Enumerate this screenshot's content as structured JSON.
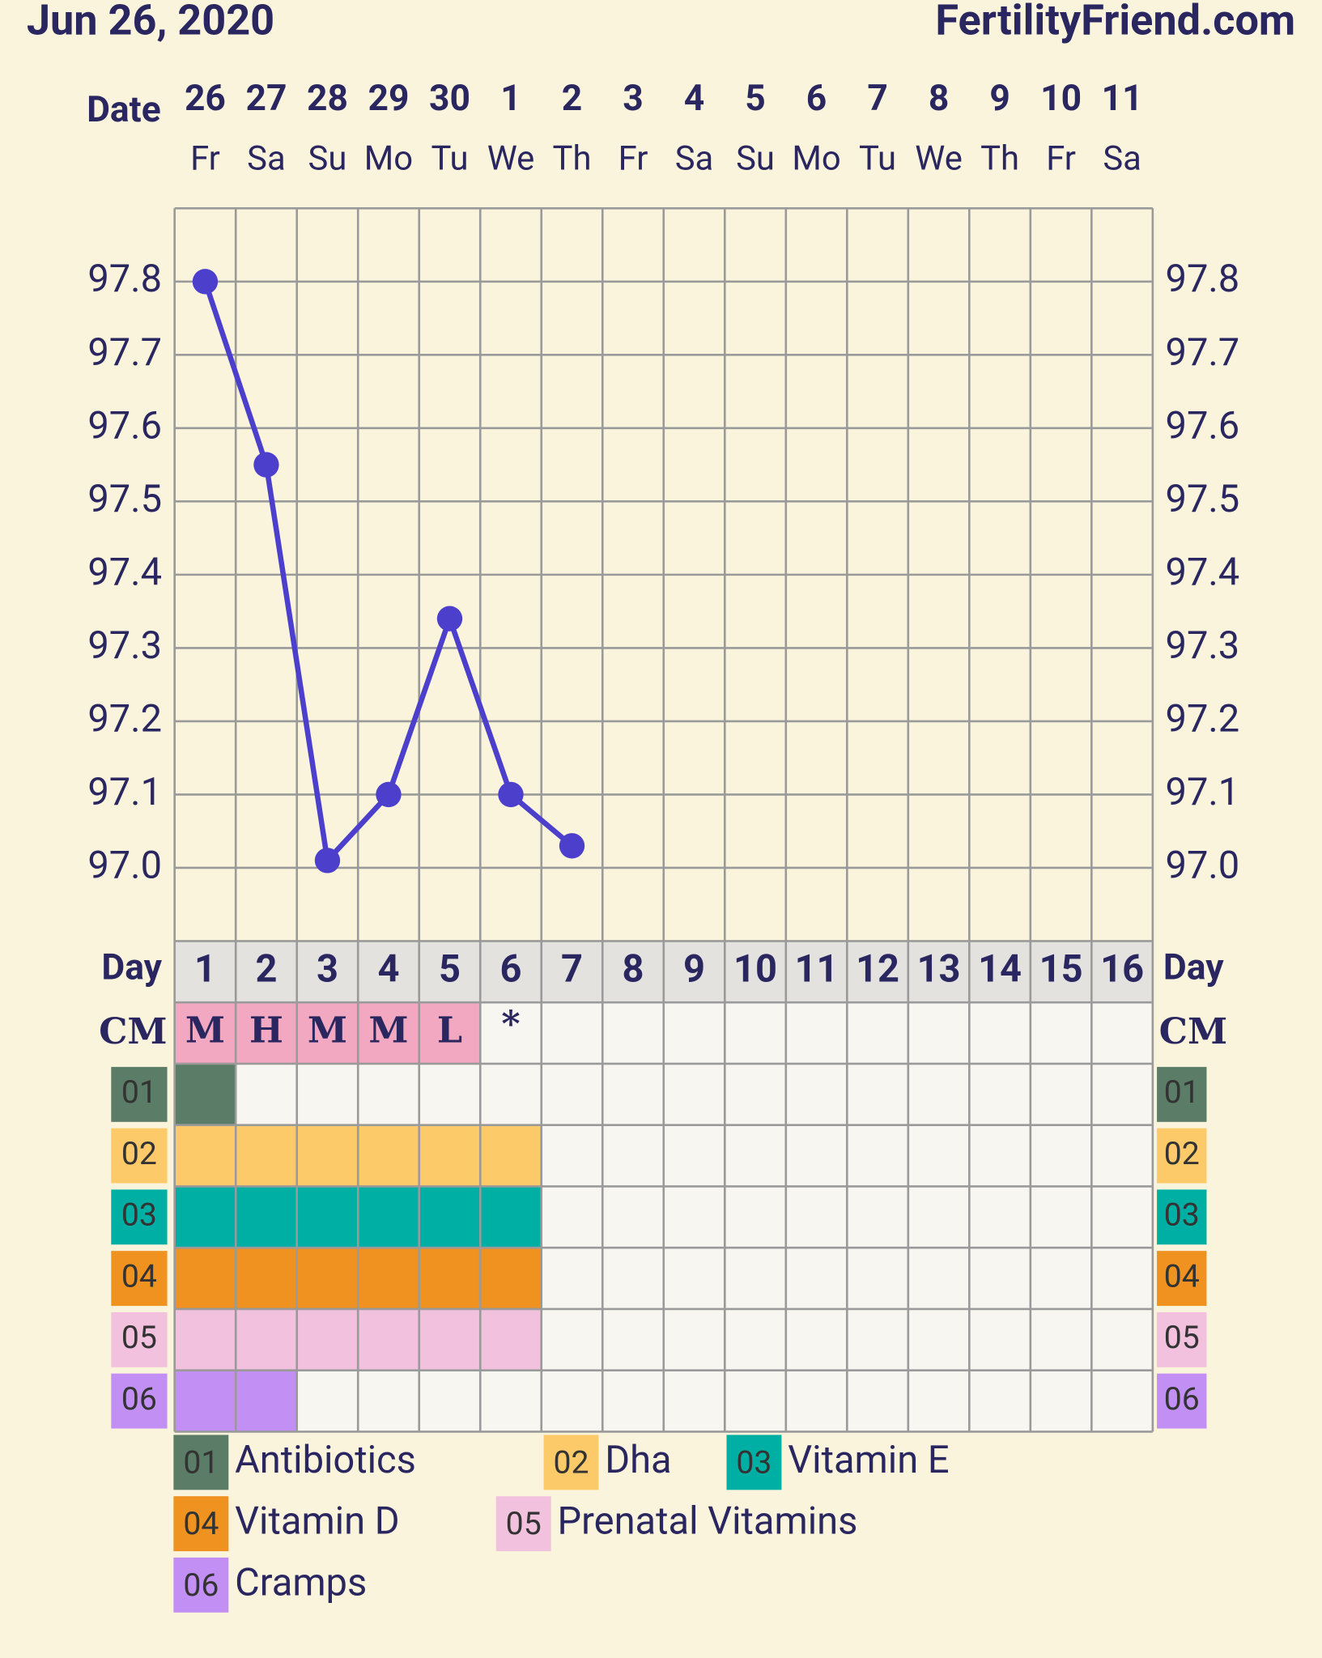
{
  "chart_data": {
    "type": "line",
    "title": "Jun 26, 2020",
    "site": "FertilityFriend.com",
    "date_label": "Date",
    "day_label": "Day",
    "cm_label": "CM",
    "dates": [
      "26",
      "27",
      "28",
      "29",
      "30",
      "1",
      "2",
      "3",
      "4",
      "5",
      "6",
      "7",
      "8",
      "9",
      "10",
      "11"
    ],
    "weekdays": [
      "Fr",
      "Sa",
      "Su",
      "Mo",
      "Tu",
      "We",
      "Th",
      "Fr",
      "Sa",
      "Su",
      "Mo",
      "Tu",
      "We",
      "Th",
      "Fr",
      "Sa"
    ],
    "cycle_days": [
      1,
      2,
      3,
      4,
      5,
      6,
      7,
      8,
      9,
      10,
      11,
      12,
      13,
      14,
      15,
      16
    ],
    "series": [
      {
        "name": "Temperature",
        "color": "#4b3fcc",
        "values": [
          97.8,
          97.55,
          97.01,
          97.1,
          97.34,
          97.1,
          97.03,
          null,
          null,
          null,
          null,
          null,
          null,
          null,
          null,
          null
        ]
      }
    ],
    "ylim": [
      96.9,
      97.9
    ],
    "yticks": [
      {
        "value": 97.0,
        "label": "97.0"
      },
      {
        "value": 97.1,
        "label": "97.1"
      },
      {
        "value": 97.2,
        "label": "97.2"
      },
      {
        "value": 97.3,
        "label": "97.3"
      },
      {
        "value": 97.4,
        "label": "97.4"
      },
      {
        "value": 97.5,
        "label": "97.5"
      },
      {
        "value": 97.6,
        "label": "97.6"
      },
      {
        "value": 97.7,
        "label": "97.7"
      },
      {
        "value": 97.8,
        "label": "97.8"
      }
    ],
    "grid": true,
    "cm": [
      "M",
      "H",
      "M",
      "M",
      "L",
      "*",
      null,
      null,
      null,
      null,
      null,
      null,
      null,
      null,
      null,
      null
    ],
    "cm_color": "#f3a8c2",
    "medications": [
      {
        "code": "01",
        "name": "Antibiotics",
        "color": "#5b7c67",
        "days": [
          1
        ]
      },
      {
        "code": "02",
        "name": "Dha",
        "color": "#fdca6a",
        "days": [
          1,
          2,
          3,
          4,
          5,
          6
        ]
      },
      {
        "code": "03",
        "name": "Vitamin E",
        "color": "#00afa4",
        "days": [
          1,
          2,
          3,
          4,
          5,
          6
        ]
      },
      {
        "code": "04",
        "name": "Vitamin D",
        "color": "#ef921f",
        "days": [
          1,
          2,
          3,
          4,
          5,
          6
        ]
      },
      {
        "code": "05",
        "name": "Prenatal Vitamins",
        "color": "#f2c1dd",
        "days": [
          1,
          2,
          3,
          4,
          5,
          6
        ]
      },
      {
        "code": "06",
        "name": "Cramps",
        "color": "#c28ff5",
        "days": [
          1,
          2
        ]
      }
    ]
  }
}
